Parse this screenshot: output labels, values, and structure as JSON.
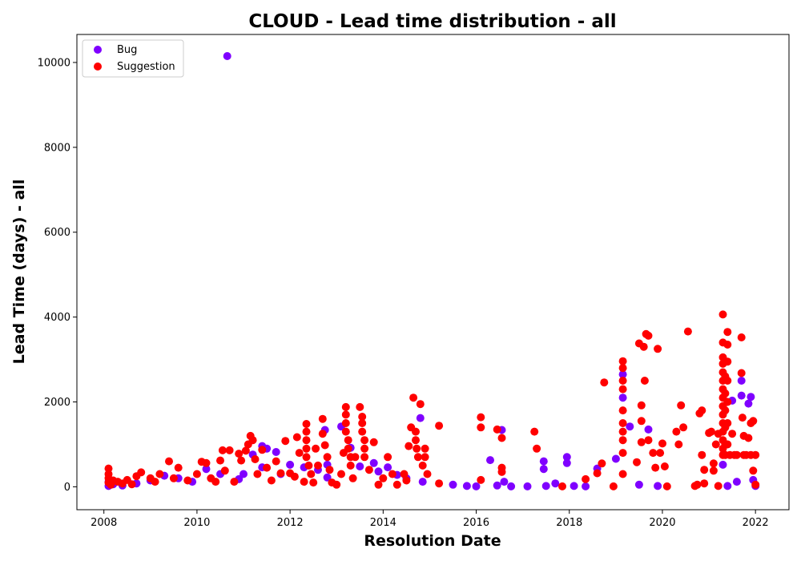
{
  "chart_data": {
    "type": "scatter",
    "title": "CLOUD - Lead time distribution - all",
    "xlabel": "Resolution Date",
    "ylabel": "Lead Time (days) - all",
    "xlim": [
      2007.42,
      2022.72
    ],
    "ylim": [
      -540,
      10660
    ],
    "x_ticks": [
      2008,
      2010,
      2012,
      2014,
      2016,
      2018,
      2020,
      2022
    ],
    "y_ticks": [
      0,
      2000,
      4000,
      6000,
      8000,
      10000
    ],
    "grid": false,
    "legend_position": "top-left",
    "series": [
      {
        "name": "Bug",
        "color": "#7f00ff",
        "points": [
          [
            2008.1,
            20
          ],
          [
            2008.1,
            120
          ],
          [
            2008.2,
            60
          ],
          [
            2008.4,
            30
          ],
          [
            2008.7,
            80
          ],
          [
            2009.0,
            150
          ],
          [
            2009.3,
            260
          ],
          [
            2009.6,
            200
          ],
          [
            2009.9,
            120
          ],
          [
            2010.2,
            420
          ],
          [
            2010.5,
            300
          ],
          [
            2010.65,
            10150
          ],
          [
            2010.9,
            180
          ],
          [
            2011.0,
            300
          ],
          [
            2011.2,
            760
          ],
          [
            2011.4,
            960
          ],
          [
            2011.5,
            900
          ],
          [
            2011.7,
            820
          ],
          [
            2011.4,
            460
          ],
          [
            2011.8,
            300
          ],
          [
            2012.0,
            520
          ],
          [
            2012.3,
            460
          ],
          [
            2012.6,
            400
          ],
          [
            2012.8,
            520
          ],
          [
            2012.75,
            1340
          ],
          [
            2012.8,
            220
          ],
          [
            2013.1,
            1420
          ],
          [
            2013.3,
            920
          ],
          [
            2013.5,
            480
          ],
          [
            2013.8,
            560
          ],
          [
            2013.9,
            360
          ],
          [
            2014.1,
            460
          ],
          [
            2014.3,
            280
          ],
          [
            2014.5,
            200
          ],
          [
            2014.8,
            1620
          ],
          [
            2014.85,
            120
          ],
          [
            2015.5,
            50
          ],
          [
            2015.8,
            20
          ],
          [
            2016.0,
            10
          ],
          [
            2016.3,
            630
          ],
          [
            2016.45,
            30
          ],
          [
            2016.55,
            1340
          ],
          [
            2016.6,
            120
          ],
          [
            2016.75,
            10
          ],
          [
            2017.1,
            10
          ],
          [
            2017.45,
            600
          ],
          [
            2017.45,
            420
          ],
          [
            2017.5,
            20
          ],
          [
            2017.7,
            80
          ],
          [
            2017.95,
            700
          ],
          [
            2017.95,
            560
          ],
          [
            2018.1,
            20
          ],
          [
            2018.35,
            10
          ],
          [
            2018.6,
            430
          ],
          [
            2019.0,
            660
          ],
          [
            2019.15,
            2650
          ],
          [
            2019.15,
            2100
          ],
          [
            2019.3,
            1420
          ],
          [
            2019.5,
            50
          ],
          [
            2019.7,
            1350
          ],
          [
            2019.9,
            20
          ],
          [
            2021.3,
            520
          ],
          [
            2021.4,
            20
          ],
          [
            2021.7,
            2500
          ],
          [
            2021.7,
            2150
          ],
          [
            2021.85,
            1960
          ],
          [
            2021.9,
            2120
          ],
          [
            2021.95,
            160
          ],
          [
            2022.0,
            20
          ],
          [
            2021.5,
            2030
          ],
          [
            2021.6,
            120
          ]
        ]
      },
      {
        "name": "Suggestion",
        "color": "#ff0000",
        "points": [
          [
            2008.1,
            430
          ],
          [
            2008.1,
            300
          ],
          [
            2008.1,
            200
          ],
          [
            2008.1,
            100
          ],
          [
            2008.15,
            50
          ],
          [
            2008.2,
            150
          ],
          [
            2008.3,
            120
          ],
          [
            2008.4,
            80
          ],
          [
            2008.5,
            160
          ],
          [
            2008.6,
            60
          ],
          [
            2008.7,
            250
          ],
          [
            2008.8,
            340
          ],
          [
            2009.0,
            200
          ],
          [
            2009.1,
            120
          ],
          [
            2009.2,
            300
          ],
          [
            2009.4,
            600
          ],
          [
            2009.5,
            200
          ],
          [
            2009.6,
            450
          ],
          [
            2009.8,
            150
          ],
          [
            2010.0,
            300
          ],
          [
            2010.1,
            590
          ],
          [
            2010.2,
            560
          ],
          [
            2010.3,
            200
          ],
          [
            2010.4,
            120
          ],
          [
            2010.5,
            620
          ],
          [
            2010.55,
            860
          ],
          [
            2010.6,
            380
          ],
          [
            2010.7,
            860
          ],
          [
            2010.8,
            120
          ],
          [
            2010.9,
            780
          ],
          [
            2010.95,
            620
          ],
          [
            2011.05,
            850
          ],
          [
            2011.1,
            1000
          ],
          [
            2011.15,
            1200
          ],
          [
            2011.2,
            1100
          ],
          [
            2011.25,
            650
          ],
          [
            2011.3,
            300
          ],
          [
            2011.4,
            870
          ],
          [
            2011.5,
            450
          ],
          [
            2011.6,
            150
          ],
          [
            2011.7,
            600
          ],
          [
            2011.8,
            320
          ],
          [
            2011.9,
            1080
          ],
          [
            2012.0,
            320
          ],
          [
            2012.1,
            240
          ],
          [
            2012.15,
            1170
          ],
          [
            2012.2,
            800
          ],
          [
            2012.3,
            120
          ],
          [
            2012.35,
            1480
          ],
          [
            2012.35,
            1300
          ],
          [
            2012.35,
            1100
          ],
          [
            2012.35,
            900
          ],
          [
            2012.35,
            700
          ],
          [
            2012.4,
            500
          ],
          [
            2012.45,
            300
          ],
          [
            2012.5,
            100
          ],
          [
            2012.55,
            900
          ],
          [
            2012.6,
            500
          ],
          [
            2012.7,
            1600
          ],
          [
            2012.7,
            1250
          ],
          [
            2012.75,
            980
          ],
          [
            2012.8,
            700
          ],
          [
            2012.85,
            400
          ],
          [
            2012.9,
            100
          ],
          [
            2013.0,
            50
          ],
          [
            2013.1,
            300
          ],
          [
            2013.15,
            800
          ],
          [
            2013.2,
            1880
          ],
          [
            2013.2,
            1700
          ],
          [
            2013.2,
            1500
          ],
          [
            2013.2,
            1300
          ],
          [
            2013.25,
            1100
          ],
          [
            2013.25,
            900
          ],
          [
            2013.3,
            700
          ],
          [
            2013.3,
            500
          ],
          [
            2013.35,
            200
          ],
          [
            2013.4,
            700
          ],
          [
            2013.5,
            1880
          ],
          [
            2013.55,
            1650
          ],
          [
            2013.55,
            1500
          ],
          [
            2013.55,
            1300
          ],
          [
            2013.6,
            1100
          ],
          [
            2013.6,
            900
          ],
          [
            2013.6,
            700
          ],
          [
            2013.7,
            400
          ],
          [
            2013.8,
            1050
          ],
          [
            2013.9,
            50
          ],
          [
            2014.0,
            200
          ],
          [
            2014.1,
            700
          ],
          [
            2014.2,
            300
          ],
          [
            2014.3,
            50
          ],
          [
            2014.45,
            300
          ],
          [
            2014.5,
            150
          ],
          [
            2014.55,
            960
          ],
          [
            2014.6,
            1400
          ],
          [
            2014.65,
            2100
          ],
          [
            2014.7,
            1300
          ],
          [
            2014.7,
            1100
          ],
          [
            2014.72,
            900
          ],
          [
            2014.75,
            700
          ],
          [
            2014.8,
            1950
          ],
          [
            2014.85,
            500
          ],
          [
            2014.9,
            900
          ],
          [
            2014.9,
            700
          ],
          [
            2014.95,
            300
          ],
          [
            2015.2,
            1440
          ],
          [
            2015.2,
            80
          ],
          [
            2016.1,
            1640
          ],
          [
            2016.1,
            1400
          ],
          [
            2016.1,
            160
          ],
          [
            2016.45,
            1350
          ],
          [
            2016.55,
            1150
          ],
          [
            2016.55,
            450
          ],
          [
            2016.55,
            350
          ],
          [
            2017.25,
            1300
          ],
          [
            2017.3,
            900
          ],
          [
            2017.85,
            10
          ],
          [
            2018.35,
            180
          ],
          [
            2018.6,
            320
          ],
          [
            2018.7,
            550
          ],
          [
            2018.75,
            2460
          ],
          [
            2018.95,
            10
          ],
          [
            2019.15,
            2960
          ],
          [
            2019.15,
            2800
          ],
          [
            2019.15,
            2500
          ],
          [
            2019.15,
            2300
          ],
          [
            2019.15,
            1800
          ],
          [
            2019.15,
            1500
          ],
          [
            2019.15,
            1300
          ],
          [
            2019.15,
            1100
          ],
          [
            2019.15,
            800
          ],
          [
            2019.15,
            300
          ],
          [
            2019.45,
            580
          ],
          [
            2019.5,
            3380
          ],
          [
            2019.55,
            1920
          ],
          [
            2019.55,
            1550
          ],
          [
            2019.55,
            1050
          ],
          [
            2019.6,
            3300
          ],
          [
            2019.62,
            2500
          ],
          [
            2019.65,
            3600
          ],
          [
            2019.7,
            3560
          ],
          [
            2019.7,
            1100
          ],
          [
            2019.8,
            800
          ],
          [
            2019.85,
            450
          ],
          [
            2019.9,
            3250
          ],
          [
            2019.95,
            800
          ],
          [
            2020.0,
            1020
          ],
          [
            2020.05,
            480
          ],
          [
            2020.1,
            10
          ],
          [
            2020.3,
            1300
          ],
          [
            2020.35,
            1000
          ],
          [
            2020.4,
            1920
          ],
          [
            2020.45,
            1400
          ],
          [
            2020.55,
            3660
          ],
          [
            2020.75,
            50
          ],
          [
            2020.8,
            1730
          ],
          [
            2020.85,
            1800
          ],
          [
            2020.85,
            750
          ],
          [
            2020.9,
            80
          ],
          [
            2021.0,
            1270
          ],
          [
            2021.05,
            1300
          ],
          [
            2021.1,
            550
          ],
          [
            2021.15,
            1000
          ],
          [
            2021.2,
            1250
          ],
          [
            2021.3,
            4060
          ],
          [
            2021.3,
            3400
          ],
          [
            2021.3,
            3050
          ],
          [
            2021.3,
            2900
          ],
          [
            2021.3,
            2700
          ],
          [
            2021.3,
            2500
          ],
          [
            2021.3,
            2300
          ],
          [
            2021.3,
            2100
          ],
          [
            2021.3,
            1900
          ],
          [
            2021.3,
            1700
          ],
          [
            2021.3,
            1500
          ],
          [
            2021.3,
            1300
          ],
          [
            2021.3,
            1100
          ],
          [
            2021.3,
            900
          ],
          [
            2021.3,
            750
          ],
          [
            2021.35,
            2600
          ],
          [
            2021.35,
            2200
          ],
          [
            2021.35,
            1800
          ],
          [
            2021.35,
            1400
          ],
          [
            2021.35,
            1000
          ],
          [
            2021.35,
            750
          ],
          [
            2021.4,
            3650
          ],
          [
            2021.4,
            3350
          ],
          [
            2021.4,
            2950
          ],
          [
            2021.4,
            2500
          ],
          [
            2021.4,
            2000
          ],
          [
            2021.4,
            1500
          ],
          [
            2021.4,
            1000
          ],
          [
            2021.45,
            750
          ],
          [
            2021.5,
            1250
          ],
          [
            2021.55,
            750
          ],
          [
            2021.6,
            750
          ],
          [
            2021.7,
            2680
          ],
          [
            2021.7,
            3520
          ],
          [
            2021.72,
            1630
          ],
          [
            2021.75,
            1200
          ],
          [
            2021.75,
            750
          ],
          [
            2021.8,
            750
          ],
          [
            2021.85,
            1150
          ],
          [
            2021.9,
            750
          ],
          [
            2021.9,
            1500
          ],
          [
            2021.95,
            1550
          ],
          [
            2021.95,
            380
          ],
          [
            2022.0,
            750
          ],
          [
            2022.0,
            50
          ],
          [
            2020.7,
            20
          ],
          [
            2020.9,
            400
          ],
          [
            2021.1,
            380
          ],
          [
            2021.2,
            20
          ]
        ]
      }
    ]
  }
}
